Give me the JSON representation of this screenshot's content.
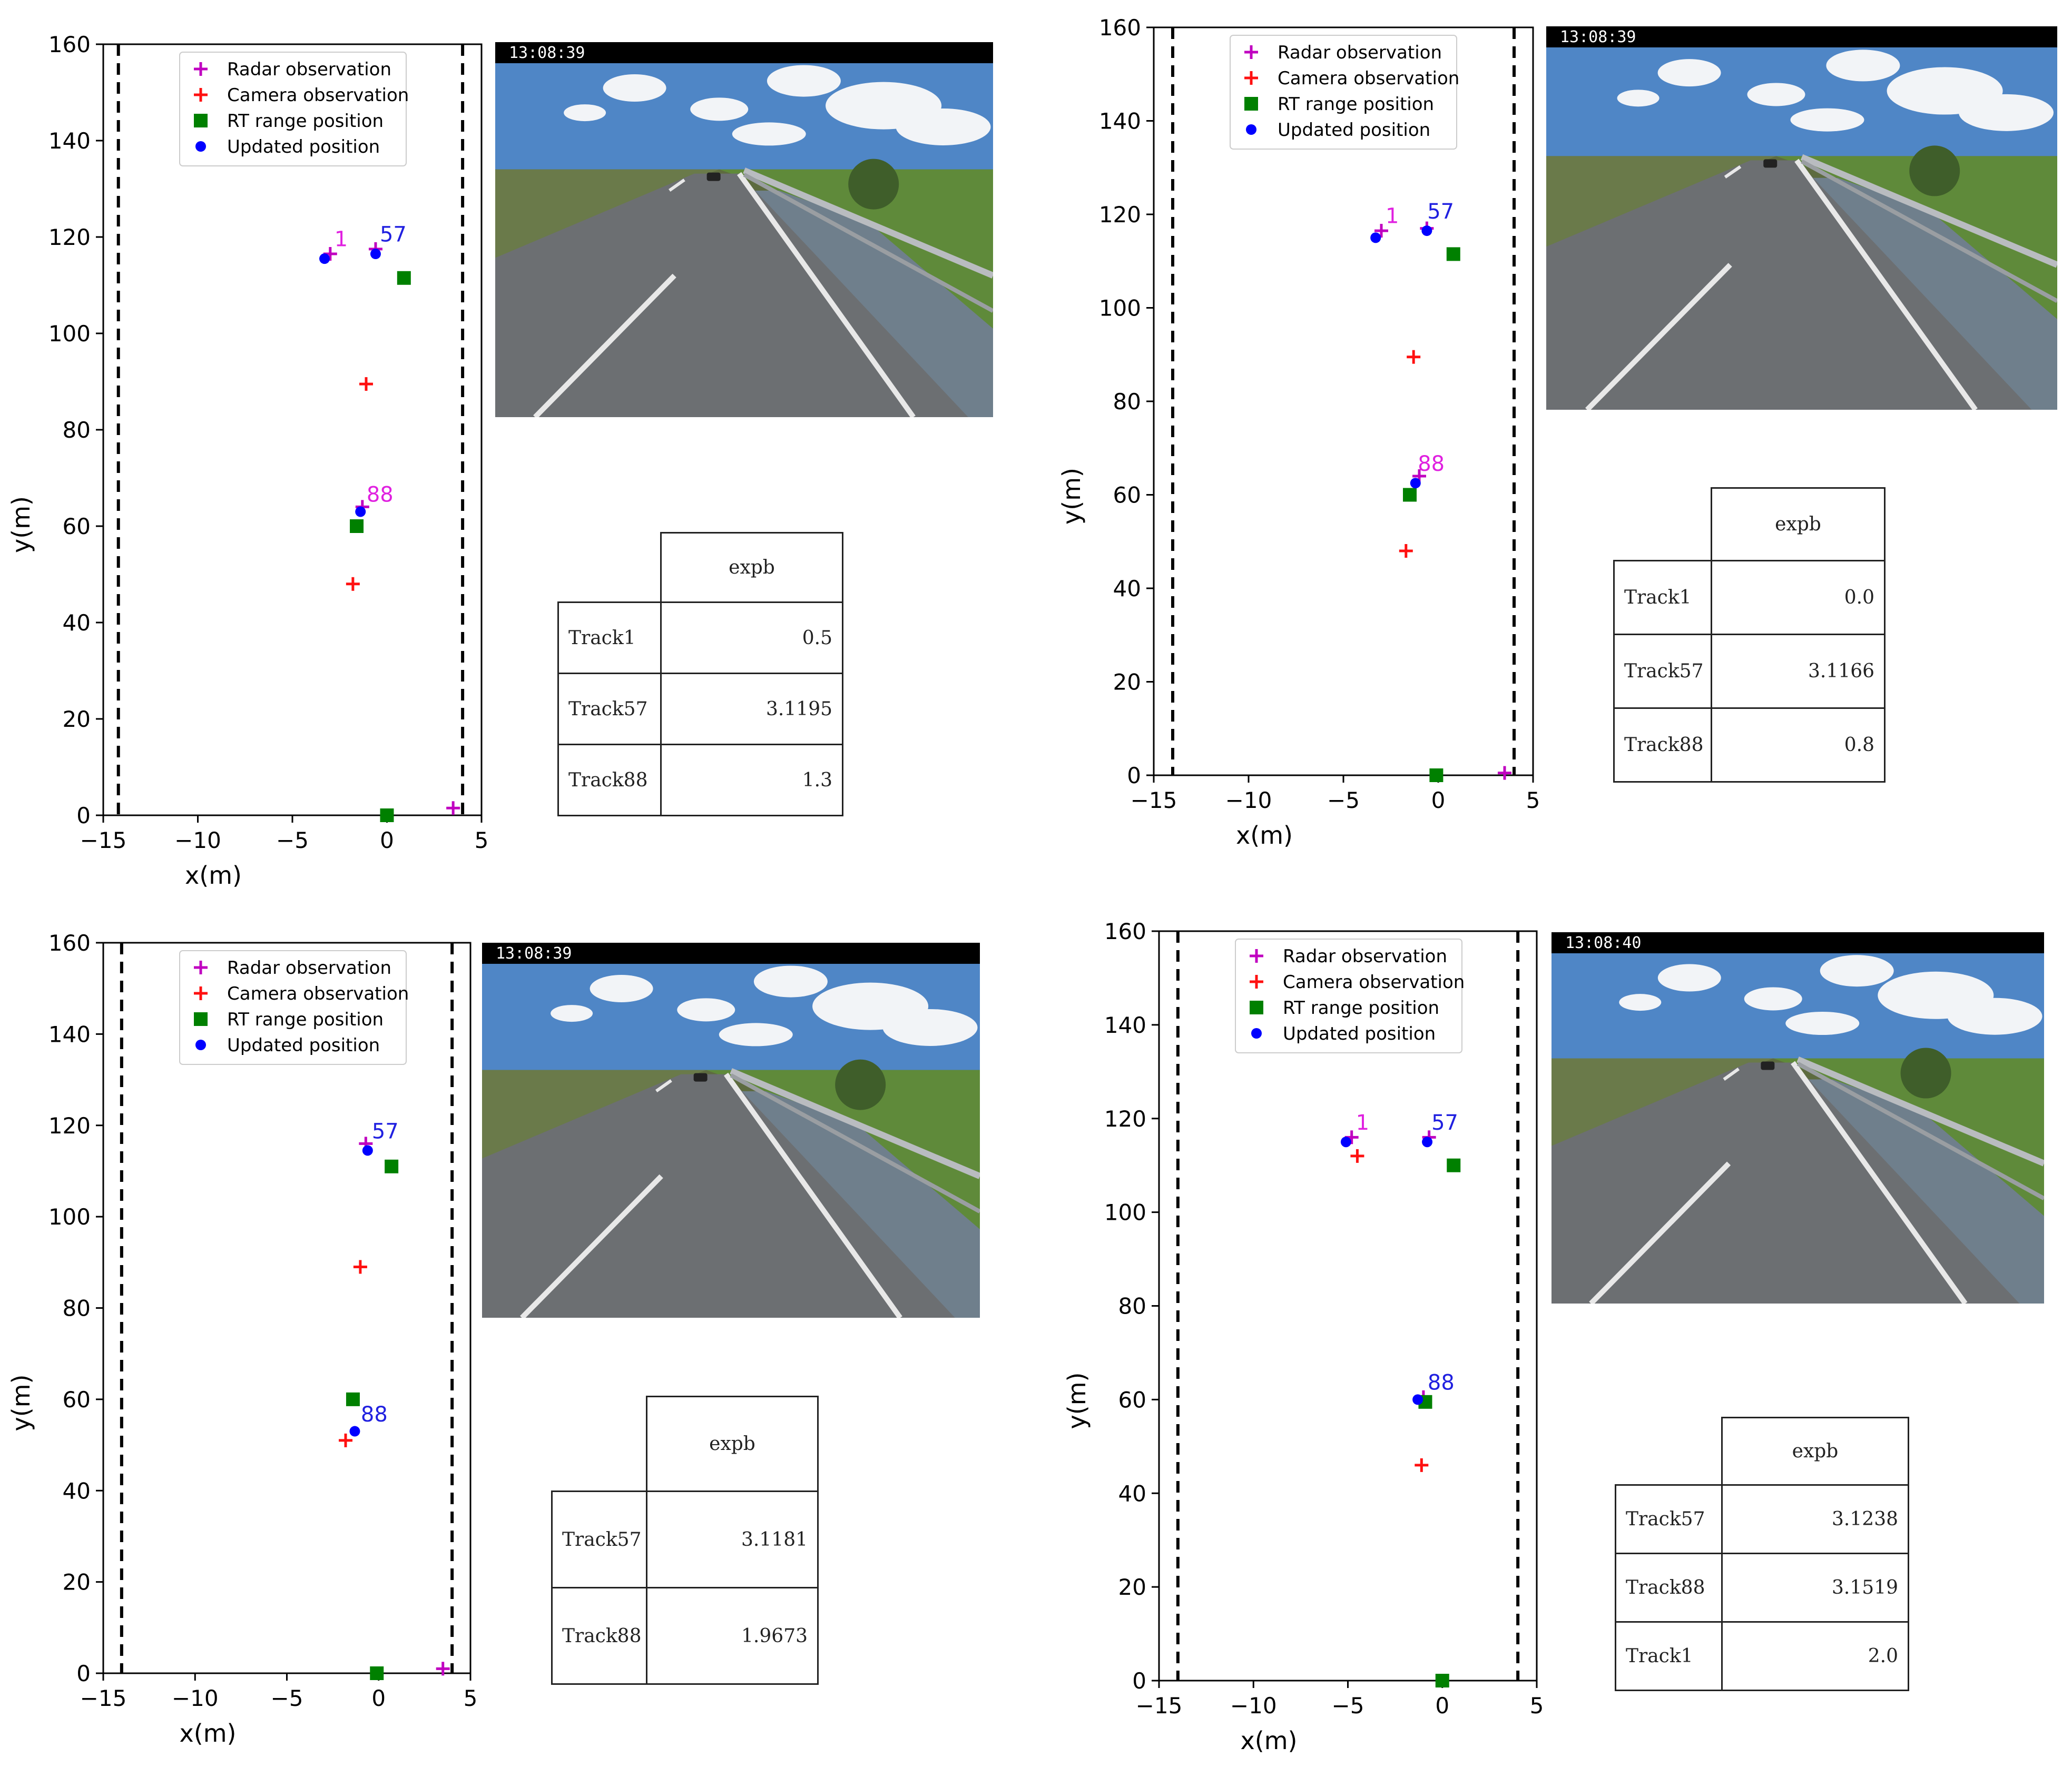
{
  "chart_data": [
    {
      "type": "scatter",
      "xlabel": "x(m)",
      "ylabel": "y(m)",
      "xlim": [
        -15,
        5
      ],
      "ylim": [
        0,
        160
      ],
      "xticks": [
        -15,
        -10,
        -5,
        0,
        5
      ],
      "yticks": [
        0,
        20,
        40,
        60,
        80,
        100,
        120,
        140,
        160
      ],
      "lane_lines_x": [
        -14.2,
        4.0
      ],
      "legend_position": "top",
      "legend": [
        {
          "label": "Radar observation",
          "marker": "plus",
          "color": "#c000c0"
        },
        {
          "label": "Camera observation",
          "marker": "plus",
          "color": "#ff1010"
        },
        {
          "label": "RT range position",
          "marker": "square",
          "color": "#008000"
        },
        {
          "label": "Updated position",
          "marker": "circle",
          "color": "#0000ff"
        }
      ],
      "series": [
        {
          "name": "Radar observation",
          "points": [
            [
              -3.0,
              116.5
            ],
            [
              -0.6,
              117.5
            ],
            [
              -1.3,
              64
            ],
            [
              3.5,
              1.5
            ]
          ]
        },
        {
          "name": "Camera observation",
          "points": [
            [
              -1.1,
              89.5
            ],
            [
              -1.8,
              48
            ]
          ]
        },
        {
          "name": "RT range position",
          "points": [
            [
              0.9,
              111.5
            ],
            [
              -1.6,
              60
            ],
            [
              0,
              0
            ]
          ]
        },
        {
          "name": "Updated position",
          "points": [
            [
              -3.3,
              115.5
            ],
            [
              -0.6,
              116.5
            ],
            [
              -1.4,
              63
            ]
          ]
        }
      ],
      "track_labels": [
        {
          "text": "1",
          "x": -3.0,
          "y": 117,
          "color": "#e020e0"
        },
        {
          "text": "57",
          "x": -0.6,
          "y": 118,
          "color": "#2020e0"
        },
        {
          "text": "88",
          "x": -1.3,
          "y": 64,
          "color": "#e020e0"
        }
      ],
      "timestamp": "13:08:39",
      "table": {
        "header": "expb",
        "rows": [
          [
            "Track1",
            "0.5"
          ],
          [
            "Track57",
            "3.1195"
          ],
          [
            "Track88",
            "1.3"
          ]
        ]
      }
    },
    {
      "type": "scatter",
      "xlabel": "x(m)",
      "ylabel": "y(m)",
      "xlim": [
        -15,
        5
      ],
      "ylim": [
        0,
        160
      ],
      "xticks": [
        -15,
        -10,
        -5,
        0,
        5
      ],
      "yticks": [
        0,
        20,
        40,
        60,
        80,
        100,
        120,
        140,
        160
      ],
      "lane_lines_x": [
        -14.0,
        4.0
      ],
      "legend_position": "top",
      "legend": [
        {
          "label": "Radar observation",
          "marker": "plus",
          "color": "#c000c0"
        },
        {
          "label": "Camera observation",
          "marker": "plus",
          "color": "#ff1010"
        },
        {
          "label": "RT range position",
          "marker": "square",
          "color": "#008000"
        },
        {
          "label": "Updated position",
          "marker": "circle",
          "color": "#0000ff"
        }
      ],
      "series": [
        {
          "name": "Radar observation",
          "points": [
            [
              -3.0,
              116.5
            ],
            [
              -0.6,
              117
            ],
            [
              -1.0,
              64
            ],
            [
              3.5,
              0.5
            ]
          ]
        },
        {
          "name": "Camera observation",
          "points": [
            [
              -1.3,
              89.5
            ],
            [
              -1.7,
              48
            ]
          ]
        },
        {
          "name": "RT range position",
          "points": [
            [
              0.8,
              111.5
            ],
            [
              -1.5,
              60
            ],
            [
              -0.1,
              0
            ]
          ]
        },
        {
          "name": "Updated position",
          "points": [
            [
              -3.3,
              115
            ],
            [
              -0.6,
              116.5
            ],
            [
              -1.2,
              62.5
            ]
          ]
        }
      ],
      "track_labels": [
        {
          "text": "1",
          "x": -3.0,
          "y": 117,
          "color": "#e020e0"
        },
        {
          "text": "57",
          "x": -0.8,
          "y": 118,
          "color": "#2020e0"
        },
        {
          "text": "88",
          "x": -1.3,
          "y": 64,
          "color": "#e020e0"
        }
      ],
      "timestamp": "13:08:39",
      "table": {
        "header": "expb",
        "rows": [
          [
            "Track1",
            "0.0"
          ],
          [
            "Track57",
            "3.1166"
          ],
          [
            "Track88",
            "0.8"
          ]
        ]
      }
    },
    {
      "type": "scatter",
      "xlabel": "x(m)",
      "ylabel": "y(m)",
      "xlim": [
        -15,
        5
      ],
      "ylim": [
        0,
        160
      ],
      "xticks": [
        -15,
        -10,
        -5,
        0,
        5
      ],
      "yticks": [
        0,
        20,
        40,
        60,
        80,
        100,
        120,
        140,
        160
      ],
      "lane_lines_x": [
        -14.0,
        4.0
      ],
      "legend_position": "top",
      "legend": [
        {
          "label": "Radar observation",
          "marker": "plus",
          "color": "#c000c0"
        },
        {
          "label": "Camera observation",
          "marker": "plus",
          "color": "#ff1010"
        },
        {
          "label": "RT range position",
          "marker": "square",
          "color": "#008000"
        },
        {
          "label": "Updated position",
          "marker": "circle",
          "color": "#0000ff"
        }
      ],
      "series": [
        {
          "name": "Radar observation",
          "points": [
            [
              -0.7,
              116
            ],
            [
              3.5,
              1
            ]
          ]
        },
        {
          "name": "Camera observation",
          "points": [
            [
              -1.0,
              89
            ],
            [
              -1.8,
              51
            ]
          ]
        },
        {
          "name": "RT range position",
          "points": [
            [
              0.7,
              111
            ],
            [
              -1.4,
              60
            ],
            [
              -0.1,
              0
            ]
          ]
        },
        {
          "name": "Updated position",
          "points": [
            [
              -0.6,
              114.5
            ],
            [
              -1.3,
              53
            ]
          ]
        }
      ],
      "track_labels": [
        {
          "text": "57",
          "x": -0.6,
          "y": 116,
          "color": "#2020e0"
        },
        {
          "text": "88",
          "x": -1.2,
          "y": 54,
          "color": "#2020e0"
        }
      ],
      "timestamp": "13:08:39",
      "table": {
        "header": "expb",
        "rows": [
          [
            "Track57",
            "3.1181"
          ],
          [
            "Track88",
            "1.9673"
          ]
        ]
      }
    },
    {
      "type": "scatter",
      "xlabel": "x(m)",
      "ylabel": "y(m)",
      "xlim": [
        -15,
        5
      ],
      "ylim": [
        0,
        160
      ],
      "xticks": [
        -15,
        -10,
        -5,
        0,
        5
      ],
      "yticks": [
        0,
        20,
        40,
        60,
        80,
        100,
        120,
        140,
        160
      ],
      "lane_lines_x": [
        -14.0,
        4.0
      ],
      "legend_position": "top",
      "legend": [
        {
          "label": "Radar observation",
          "marker": "plus",
          "color": "#c000c0"
        },
        {
          "label": "Camera observation",
          "marker": "plus",
          "color": "#ff1010"
        },
        {
          "label": "RT range position",
          "marker": "square",
          "color": "#008000"
        },
        {
          "label": "Updated position",
          "marker": "circle",
          "color": "#0000ff"
        }
      ],
      "series": [
        {
          "name": "Radar observation",
          "points": [
            [
              -4.8,
              116
            ],
            [
              -0.7,
              116
            ],
            [
              -1.0,
              60.5
            ]
          ]
        },
        {
          "name": "Camera observation",
          "points": [
            [
              -4.5,
              112
            ],
            [
              -1.1,
              46
            ]
          ]
        },
        {
          "name": "RT range position",
          "points": [
            [
              0.6,
              110
            ],
            [
              -0.9,
              59.5
            ],
            [
              0,
              0
            ]
          ]
        },
        {
          "name": "Updated position",
          "points": [
            [
              -5.1,
              115
            ],
            [
              -0.8,
              115
            ],
            [
              -1.3,
              60
            ]
          ]
        }
      ],
      "track_labels": [
        {
          "text": "1",
          "x": -4.8,
          "y": 116.5,
          "color": "#e020e0"
        },
        {
          "text": "57",
          "x": -0.8,
          "y": 116.5,
          "color": "#2020e0"
        },
        {
          "text": "88",
          "x": -1.0,
          "y": 61,
          "color": "#2020e0"
        }
      ],
      "timestamp": "13:08:40",
      "table": {
        "header": "expb",
        "rows": [
          [
            "Track57",
            "3.1238"
          ],
          [
            "Track88",
            "3.1519"
          ],
          [
            "Track1",
            "2.0"
          ]
        ]
      }
    }
  ]
}
